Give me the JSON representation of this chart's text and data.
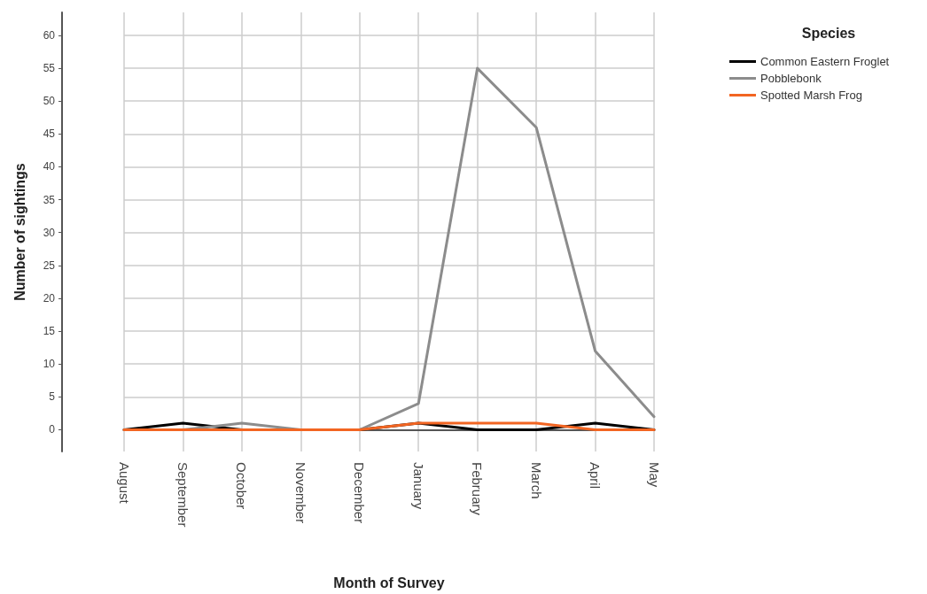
{
  "chart_data": {
    "type": "line",
    "xlabel": "Month of Survey",
    "ylabel": "Number of sightings",
    "legend_title": "Species",
    "categories": [
      "August",
      "September",
      "October",
      "November",
      "December",
      "January",
      "February",
      "March",
      "April",
      "May"
    ],
    "series": [
      {
        "name": "Common Eastern Froglet",
        "color": "#000000",
        "values": [
          0,
          1,
          0,
          0,
          0,
          1,
          0,
          0,
          1,
          0
        ]
      },
      {
        "name": "Pobblebonk",
        "color": "#8c8c8c",
        "values": [
          0,
          0,
          1,
          0,
          0,
          4,
          55,
          46,
          12,
          2
        ]
      },
      {
        "name": "Spotted Marsh Frog",
        "color": "#f26522",
        "values": [
          0,
          0,
          0,
          0,
          0,
          1,
          1,
          1,
          0,
          0
        ]
      }
    ],
    "ylim": [
      -3.3,
      63.5
    ],
    "yticks": [
      0,
      5,
      10,
      15,
      20,
      25,
      30,
      35,
      40,
      45,
      50,
      55,
      60
    ],
    "grid": true,
    "legend": "top right",
    "marker": "none",
    "line_style": "solid"
  }
}
